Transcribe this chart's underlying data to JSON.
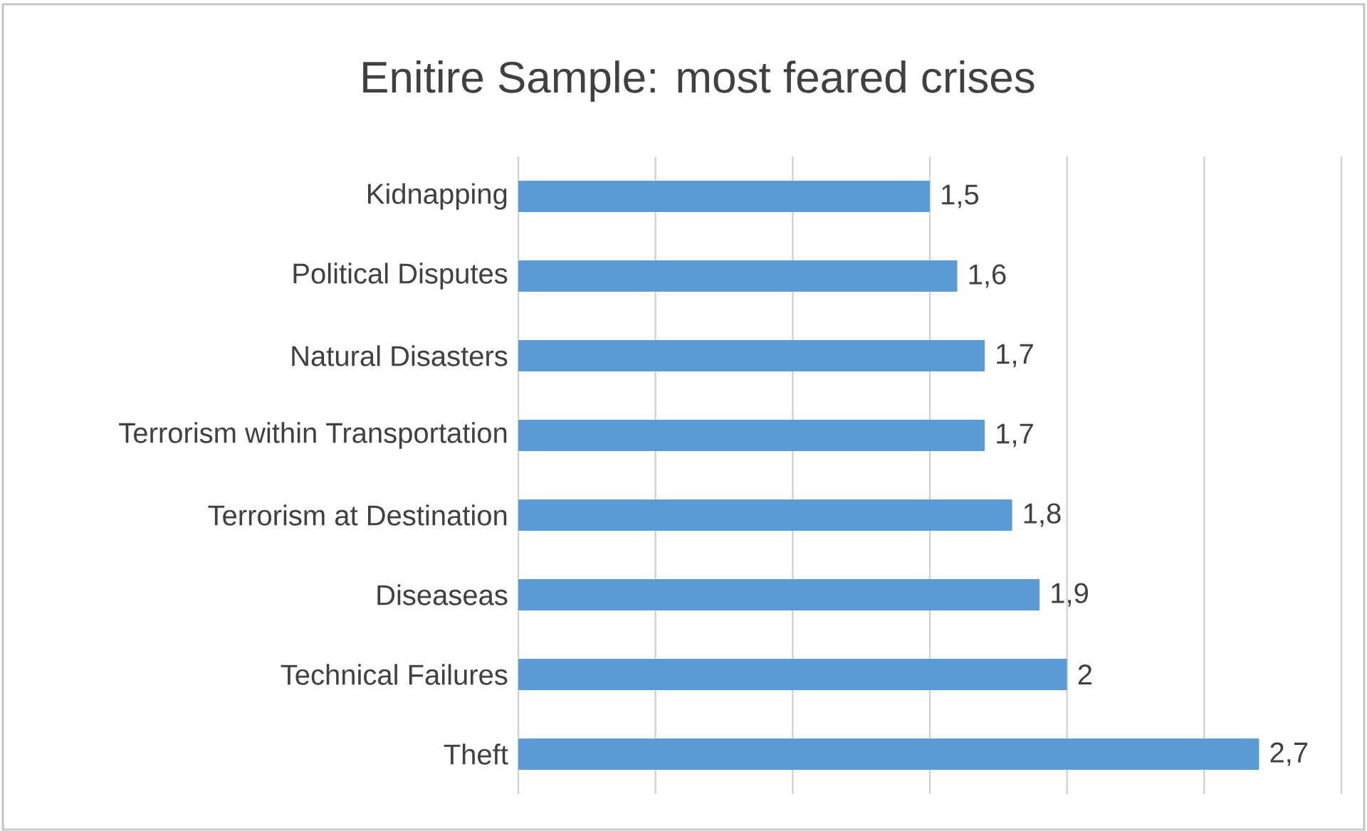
{
  "chart_data": {
    "type": "bar",
    "orientation": "horizontal",
    "title": "Enitire Sample: most feared crises",
    "categories": [
      "Kidnapping",
      "Political Disputes",
      "Natural Disasters",
      "Terrorism within Transportation",
      "Terrorism at Destination",
      "Diseaseas",
      "Technical Failures",
      "Theft"
    ],
    "values": [
      1.5,
      1.6,
      1.7,
      1.7,
      1.8,
      1.9,
      2,
      2.7
    ],
    "value_labels": [
      "1,5",
      "1,6",
      "1,7",
      "1,7",
      "1,8",
      "1,9",
      "2",
      "2,7"
    ],
    "color": "#5b9bd5",
    "xlim": [
      0,
      3
    ],
    "xticks": [
      {
        "value": 0,
        "label": null
      },
      {
        "value": 0.5,
        "label": null
      },
      {
        "value": 1,
        "label": null
      },
      {
        "value": 1.5,
        "label": null
      },
      {
        "value": 2,
        "label": null
      },
      {
        "value": 2.5,
        "label": null
      },
      {
        "value": 3,
        "label": null
      }
    ],
    "tick_labels": "y",
    "grid": "x"
  }
}
